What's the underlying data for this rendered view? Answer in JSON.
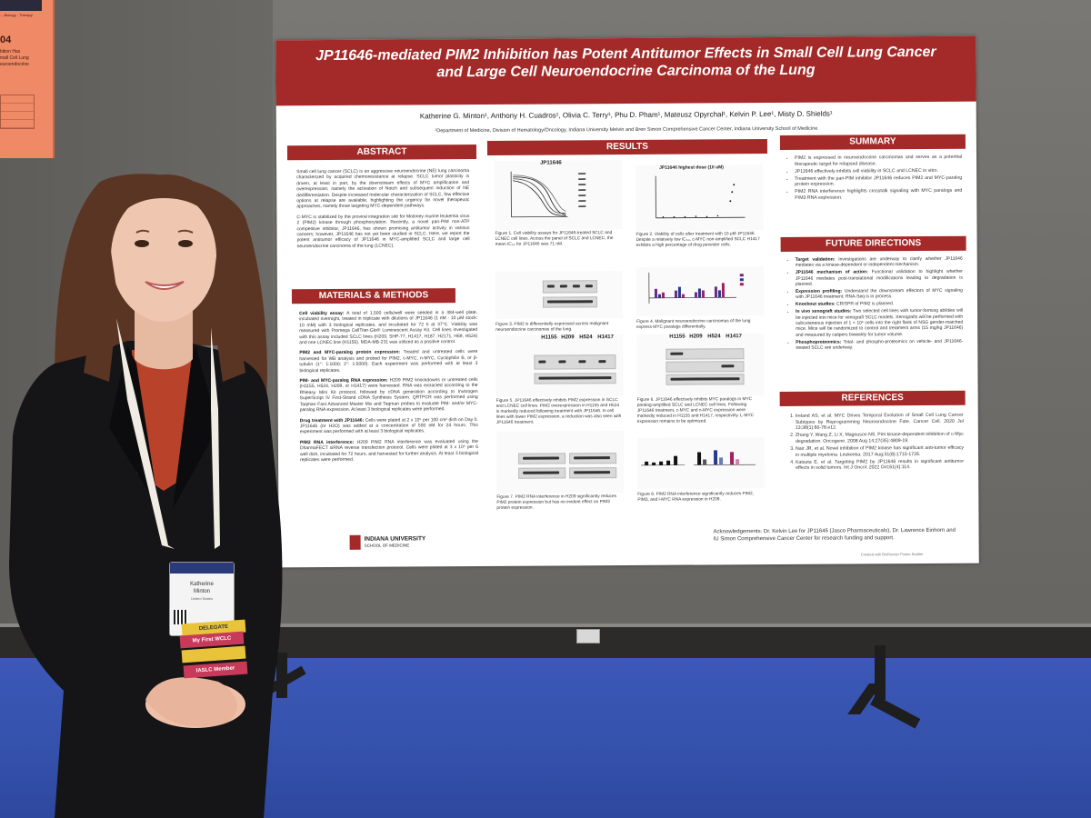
{
  "corner_poster": {
    "number": "04",
    "lines": [
      "bition Has",
      "mall Cell Lung",
      "euroendocrine"
    ],
    "top": "... Biology - Therapy"
  },
  "poster": {
    "title": "JP11646-mediated PIM2 Inhibition has Potent Antitumor Effects in Small Cell Lung Cancer and Large Cell Neuroendocrine Carcinoma of the Lung",
    "authors": "Katherine G. Minton¹, Anthony H. Cuadros¹, Olivia C. Terry¹, Phu D. Pham¹, Mateusz Opyrchał¹, Kelvin P. Lee¹, Misty D. Shields¹",
    "affiliation": "¹Department of Medicine, Division of Hematology/Oncology, Indiana University Melvin and Bren Simon Comprehensive Cancer Center, Indiana University School of Medicine",
    "sections": {
      "abstract": "ABSTRACT",
      "methods": "MATERIALS & METHODS",
      "results": "RESULTS",
      "summary": "SUMMARY",
      "future": "FUTURE DIRECTIONS",
      "references": "REFERENCES"
    },
    "abstract_p1": "Small cell lung cancer (SCLC) is an aggressive neuroendocrine (NE) lung carcinoma characterized by acquired chemoresistance at relapse. SCLC tumor plasticity is driven, at least in part, by the downstream effects of MYC amplification and overexpression, namely the activation of Notch and subsequent induction of NE dedifferentiation. Despite increased molecular characterization of SCLC, few effective options at relapse are available, highlighting the urgency for novel therapeutic approaches, namely those targeting MYC-dependent pathways.",
    "abstract_p2": "C-MYC is stabilized by the proviral integration site for Moloney murine leukemia virus 2 (PIM2) kinase through phosphorylation. Recently, a novel pan-PIM non-ATP competitive inhibitor, JP11646, has shown promising antitumor activity in various cancers; however, JP11646 has not yet been studied in SCLC. Here, we report the potent antitumor efficacy of JP11646 in MYC-amplified SCLC and large cell neuroendocrine carcinoma of the lung (LCNEC).",
    "methods": [
      {
        "h": "Cell viability assay:",
        "t": "A total of 1,500 cells/well were seeded in a 384-well plate, incubated overnight, treated in triplicate with dilutions of JP11646 (1 nM - 10 μM stock: 10 mM) with 3 biological replicates, and incubated for 72 h at 37°C. Viability was measured with Promega CellTiter-Glo® Luminescent Assay Kit. Cell lines investigated with this assay included SCLC lines (H209, SHP-77, H1417, H187, H2171, H69, H524) and one LCNEC line (H1155). MDA-MB-231 was utilized as a positive control."
      },
      {
        "h": "PIM2 and MYC-paralog protein expression:",
        "t": "Treated and untreated cells were harvested for WB analysis and probed for PIM2, c-MYC, n-MYC, Cyclophilin B, or β-tubulin (1°: 1:1000; 2°: 1:5000). Each experiment was performed with at least 3 biological replicates."
      },
      {
        "h": "PIM- and MYC-paralog RNA expression:",
        "t": "H209 PIM2 knockdowns or untreated cells (H1155, H524, H209, or H1417) were harvested. RNA was extracted according to the RNeasy Mini Kit protocol, followed by cDNA generation according to Invitrogen SuperScript IV First-Strand cDNA Synthesis System. QRTPCR was performed using Taqman Fast Advanced Master Mix and Taqman probes to evaluate PIM- and/or MYC-paralog RNA expression. At least 3 biological replicates were performed."
      },
      {
        "h": "Drug treatment with JP11646:",
        "t": "Cells were plated at 2 x 10⁵ per 100 cm² dish on Day 0. JP11646 (or H2O) was added at a concentration of 500 nM for 24 hours. This experiment was performed with at least 3 biological replicates."
      },
      {
        "h": "PIM2 RNA interference:",
        "t": "H209 PIM2 RNA interference was evaluated using the DharmaFECT siRNA reverse transfection protocol. Cells were plated at 3 x 10⁵ per 6 well dish, incubated for 72 hours, and harvested for further analysis. At least 3 biological replicates were performed."
      }
    ],
    "figs": {
      "f1_title": "JP11646",
      "f2_title": "JP11646 highest dose (10 uM)",
      "f1_cap": "Figure 1. Cell viability assays for JP11646-treated SCLC and LCNEC cell lines. Across the panel of SCLC and LCNEC, the mean IC₅₀ for JP11646 was 71 nM.",
      "f2_cap": "Figure 2. Viability of cells after treatment with 10 μM JP11646. Despite a relatively low IC₅₀, c-MYC non-amplified SCLC H1417 exhibits a high percentage of drug persister cells.",
      "f3_cap": "Figure 3. PIM2 is differentially expressed across malignant neuroendocrine carcinomas of the lung.",
      "f4_cap": "Figure 4. Malignant neuroendocrine carcinomas of the lung express MYC paralogs differentially.",
      "f5_cap": "Figure 5. JP11646 effectively inhibits PIM2 expression in SCLC and LCNEC cell lines. PIM2 overexpression in H1155 and H524 is markedly reduced following treatment with JP11646. In cell lines with lower PIM2 expression, a reduction was also seen with JP11646 treatment.",
      "f6_cap": "Figure 6. JP11646 effectively inhibits MYC paralogs in MYC paralog-amplified SCLC and LCNEC cell lines. Following JP11646 treatment, c-MYC and n-MYC expression were markedly reduced in H1155 and H1417, respectively. L-MYC expression remains to be optimized.",
      "f7_cap": "Figure 7. PIM2 RNA interference in H209 significantly reduces PIM2 protein expression but has no evident effect on PIM3 protein expression.",
      "f8_cap": "Figure 8. PIM2 RNA interference significantly reduces PIM2, PIM3, and l-MYC RNA expression in H209.",
      "lanes": [
        "H1155",
        "H209",
        "H524",
        "H1417"
      ],
      "lanes2": [
        "H1155",
        "H209",
        "H524",
        "H1417"
      ]
    },
    "summary": [
      "PIM2 is expressed in neuroendocrine carcinomas and serves as a potential therapeutic target for relapsed disease.",
      "JP11646 effectively inhibits cell viability in SCLC and LCNEC in vitro.",
      "Treatment with the pan-PIM inhibitor JP11646 reduces PIM2 and MYC-paralog protein expression.",
      "PIM2 RNA interference highlights crosstalk signaling with MYC paralogs and PIM3 RNA expression."
    ],
    "future": [
      {
        "h": "Target validation:",
        "t": "Investigations are underway to clarify whether JP11646 mediates via a kinase-dependent or independent mechanism."
      },
      {
        "h": "JP11646 mechanism of action:",
        "t": "Functional validation to highlight whether JP11646 mediates post-translational modifications leading to degradation is planned."
      },
      {
        "h": "Expression profiling:",
        "t": "Understand the downstream effectors of MYC signaling with JP11646 treatment; RNA-Seq is in process."
      },
      {
        "h": "Knockout studies:",
        "t": "CRISPR of PIM2 is planned."
      },
      {
        "h": "In vivo xenograft studies:",
        "t": "Two selected cell lines with tumor-forming abilities will be injected into mice for xenograft SCLC models. Xenografts will be performed with subcutaneous injection of 1 × 10⁶ cells into the right flank of NSG gender-matched mice. Mice will be randomized to control and treatment arms (15 mg/kg JP11646) and measured by calipers biweekly for tumor volume."
      },
      {
        "h": "Phosphoproteomics:",
        "t": "Total- and phospho-proteomics on vehicle- and JP11646-treated SCLC are underway."
      }
    ],
    "references": [
      "Ireland AS, et al. MYC Drives Temporal Evolution of Small Cell Lung Cancer Subtypes by Reprogramming Neuroendocrine Fate. Cancer Cell. 2020 Jul 13;38(1):60-78.e12.",
      "Zhang Y, Wang Z, Li X, Magnuson NS. Pim kinase-dependent inhibition of c-Myc degradation. Oncogene. 2008 Aug 14;27(35):4809-19.",
      "Nair JR, et al. Novel inhibition of PIM2 kinase has significant anti-tumor efficacy in multiple myeloma. Leukemia. 2017 Aug;31(8):1715-1726.",
      "Katsuta E, et al. Targeting PIM2 by JP11646 results in significant antitumor effects in solid tumors. Int J Oncol. 2022 Oct;61(4):114."
    ],
    "iu_name": "INDIANA UNIVERSITY",
    "iu_school": "SCHOOL OF MEDICINE",
    "acknowledgements": "Acknowledgements: Dr. Kelvin Lee for JP11646 (Jasco Pharmaceuticals), Dr. Lawrence Einhorn and IU Simon Comprehensive Cancer Center for research funding and support.",
    "credit": "Created with BioRender Poster Builder"
  },
  "badge": {
    "first": "Katherine",
    "last": "Minton",
    "country": "United States",
    "ribbon1": "DELEGATE",
    "ribbon2": "My First WCLC",
    "ribbon3": "IASLC Member"
  },
  "colors": {
    "poster_accent": "#a32a28",
    "carpet": "#3552ad",
    "wall": "#6f6d69"
  }
}
